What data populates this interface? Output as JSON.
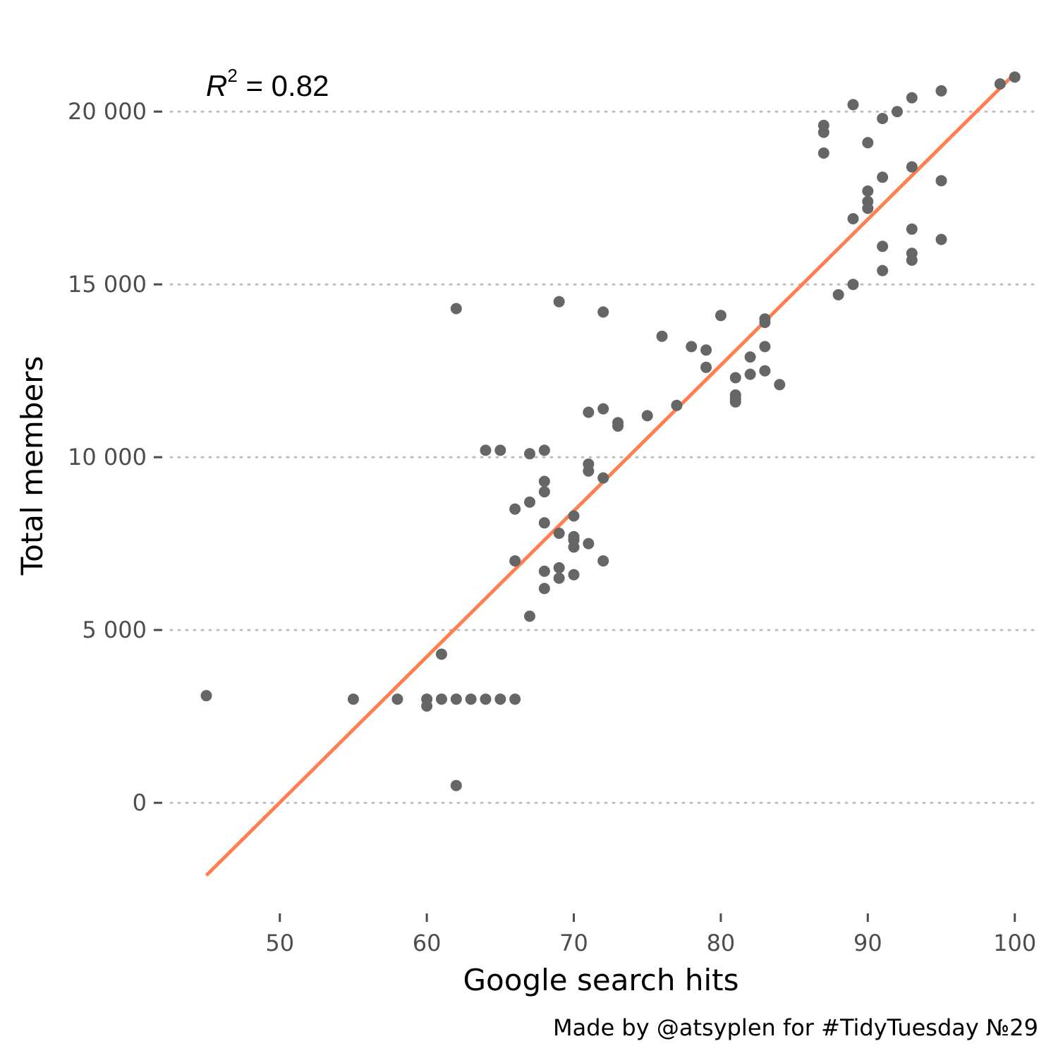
{
  "chart_data": {
    "type": "scatter",
    "xlabel": "Google search hits",
    "ylabel": "Total members",
    "caption": "Made by @atsyplen for #TidyTuesday №29",
    "annotation": {
      "base": "R",
      "sup": "2",
      "rest": " = 0.82"
    },
    "xlim": [
      42,
      101.5
    ],
    "ylim": [
      -3200,
      21800
    ],
    "x_ticks": [
      50,
      60,
      70,
      80,
      90,
      100
    ],
    "x_tick_labels": [
      "50",
      "60",
      "70",
      "80",
      "90",
      "100"
    ],
    "y_ticks": [
      0,
      5000,
      10000,
      15000,
      20000
    ],
    "y_tick_labels": [
      "0",
      "5 000",
      "10 000",
      "15 000",
      "20 000"
    ],
    "grid": "horizontal dotted",
    "colors": {
      "points": "#666666",
      "fit": "#ff7f50",
      "grid": "#bfbfbf",
      "tick": "#4d4d4d"
    },
    "fit_line": {
      "x": [
        45,
        100
      ],
      "y": [
        -2100,
        21100
      ]
    },
    "points": [
      {
        "x": 45,
        "y": 3100
      },
      {
        "x": 55,
        "y": 3000
      },
      {
        "x": 58,
        "y": 3000
      },
      {
        "x": 60,
        "y": 3000
      },
      {
        "x": 60,
        "y": 2800
      },
      {
        "x": 61,
        "y": 3000
      },
      {
        "x": 61,
        "y": 4300
      },
      {
        "x": 62,
        "y": 3000
      },
      {
        "x": 62,
        "y": 500
      },
      {
        "x": 62,
        "y": 14300
      },
      {
        "x": 63,
        "y": 3000
      },
      {
        "x": 64,
        "y": 3000
      },
      {
        "x": 64,
        "y": 10200
      },
      {
        "x": 65,
        "y": 3000
      },
      {
        "x": 65,
        "y": 10200
      },
      {
        "x": 66,
        "y": 3000
      },
      {
        "x": 66,
        "y": 8500
      },
      {
        "x": 66,
        "y": 7000
      },
      {
        "x": 67,
        "y": 10100
      },
      {
        "x": 67,
        "y": 8700
      },
      {
        "x": 67,
        "y": 5400
      },
      {
        "x": 68,
        "y": 10200
      },
      {
        "x": 68,
        "y": 9300
      },
      {
        "x": 68,
        "y": 9000
      },
      {
        "x": 68,
        "y": 8100
      },
      {
        "x": 68,
        "y": 6700
      },
      {
        "x": 68,
        "y": 6200
      },
      {
        "x": 69,
        "y": 14500
      },
      {
        "x": 69,
        "y": 7800
      },
      {
        "x": 69,
        "y": 6800
      },
      {
        "x": 69,
        "y": 6500
      },
      {
        "x": 70,
        "y": 8300
      },
      {
        "x": 70,
        "y": 7700
      },
      {
        "x": 70,
        "y": 7600
      },
      {
        "x": 70,
        "y": 7400
      },
      {
        "x": 70,
        "y": 6600
      },
      {
        "x": 71,
        "y": 11300
      },
      {
        "x": 71,
        "y": 9800
      },
      {
        "x": 71,
        "y": 9600
      },
      {
        "x": 71,
        "y": 7500
      },
      {
        "x": 72,
        "y": 14200
      },
      {
        "x": 72,
        "y": 11400
      },
      {
        "x": 72,
        "y": 9400
      },
      {
        "x": 72,
        "y": 7000
      },
      {
        "x": 73,
        "y": 11000
      },
      {
        "x": 73,
        "y": 10900
      },
      {
        "x": 75,
        "y": 11200
      },
      {
        "x": 76,
        "y": 13500
      },
      {
        "x": 77,
        "y": 11500
      },
      {
        "x": 78,
        "y": 13200
      },
      {
        "x": 79,
        "y": 13100
      },
      {
        "x": 79,
        "y": 12600
      },
      {
        "x": 80,
        "y": 14100
      },
      {
        "x": 81,
        "y": 12300
      },
      {
        "x": 81,
        "y": 11800
      },
      {
        "x": 81,
        "y": 11700
      },
      {
        "x": 81,
        "y": 11600
      },
      {
        "x": 82,
        "y": 12900
      },
      {
        "x": 82,
        "y": 12400
      },
      {
        "x": 83,
        "y": 14000
      },
      {
        "x": 83,
        "y": 13900
      },
      {
        "x": 83,
        "y": 13200
      },
      {
        "x": 83,
        "y": 12500
      },
      {
        "x": 84,
        "y": 12100
      },
      {
        "x": 87,
        "y": 19600
      },
      {
        "x": 87,
        "y": 19400
      },
      {
        "x": 87,
        "y": 18800
      },
      {
        "x": 88,
        "y": 14700
      },
      {
        "x": 89,
        "y": 20200
      },
      {
        "x": 89,
        "y": 16900
      },
      {
        "x": 89,
        "y": 15000
      },
      {
        "x": 90,
        "y": 19100
      },
      {
        "x": 90,
        "y": 17700
      },
      {
        "x": 90,
        "y": 17400
      },
      {
        "x": 90,
        "y": 17200
      },
      {
        "x": 91,
        "y": 19800
      },
      {
        "x": 91,
        "y": 18100
      },
      {
        "x": 91,
        "y": 16100
      },
      {
        "x": 91,
        "y": 15400
      },
      {
        "x": 92,
        "y": 20000
      },
      {
        "x": 93,
        "y": 20400
      },
      {
        "x": 93,
        "y": 18400
      },
      {
        "x": 93,
        "y": 16600
      },
      {
        "x": 93,
        "y": 15900
      },
      {
        "x": 93,
        "y": 15700
      },
      {
        "x": 95,
        "y": 20600
      },
      {
        "x": 95,
        "y": 18000
      },
      {
        "x": 95,
        "y": 16300
      },
      {
        "x": 99,
        "y": 20800
      },
      {
        "x": 100,
        "y": 21000
      }
    ]
  }
}
